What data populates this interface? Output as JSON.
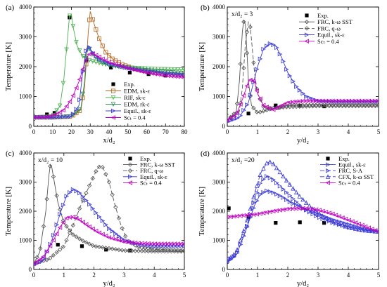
{
  "chart_data": [
    {
      "type": "line",
      "panel_label": "(a)",
      "annotation": "",
      "xlabel": "x/d₂",
      "ylabel": "Temperature [K]",
      "xlim": [
        0,
        80
      ],
      "ylim": [
        0,
        4000
      ],
      "xticks": [
        "0",
        "10",
        "20",
        "30",
        "40",
        "50",
        "60",
        "70",
        "80"
      ],
      "yticks": [
        "0",
        "1000",
        "2000",
        "3000",
        "4000"
      ],
      "legend_position": "bottom-right",
      "series": [
        {
          "name": "Exp.",
          "color": "#000000",
          "dash": "",
          "marker": "filled-square",
          "points_only": true,
          "x": [
            7,
            11,
            19,
            28,
            41,
            51,
            61,
            70
          ],
          "y": [
            400,
            450,
            3650,
            2200,
            1970,
            1800,
            1750,
            1700
          ]
        },
        {
          "name": "EDM, sk-ε",
          "color": "#b5651d",
          "dash": "",
          "marker": "open-square",
          "x": [
            0,
            10,
            20,
            25,
            27,
            29,
            30,
            31,
            33,
            35,
            38,
            42,
            48,
            55,
            62,
            70,
            80
          ],
          "y": [
            300,
            300,
            330,
            550,
            1300,
            3200,
            3850,
            3650,
            3250,
            2900,
            2500,
            2250,
            2050,
            1900,
            1820,
            1760,
            1700
          ]
        },
        {
          "name": "RIF, sk-ε",
          "color": "#4caf50",
          "dash": "",
          "marker": "triangle-down",
          "x": [
            0,
            10,
            14,
            16,
            18,
            19,
            20,
            21,
            23,
            26,
            30,
            36,
            45,
            55,
            65,
            80
          ],
          "y": [
            300,
            330,
            700,
            1600,
            3000,
            3700,
            3750,
            3300,
            2700,
            2350,
            2200,
            2100,
            2000,
            1950,
            1920,
            1900
          ]
        },
        {
          "name": "EDM, rk-ε",
          "color": "#2e8b57",
          "dash": "",
          "marker": "triangle-down",
          "x": [
            0,
            10,
            20,
            25,
            27,
            28,
            29,
            30,
            32,
            35,
            40,
            50,
            60,
            70,
            80
          ],
          "y": [
            300,
            300,
            330,
            600,
            1500,
            2400,
            2650,
            2550,
            2350,
            2200,
            2050,
            1950,
            1880,
            1820,
            1780
          ]
        },
        {
          "name": "Equil., sk-ε",
          "color": "#3b3bd6",
          "dash": "",
          "marker": "triangle-right",
          "x": [
            0,
            10,
            20,
            24,
            26,
            28,
            29,
            30,
            32,
            35,
            40,
            50,
            60,
            70,
            80
          ],
          "y": [
            300,
            300,
            330,
            700,
            1800,
            2600,
            2700,
            2600,
            2400,
            2250,
            2100,
            1950,
            1850,
            1780,
            1720
          ]
        },
        {
          "name": "Scₜ = 0.4",
          "color": "#c000c0",
          "dash": "",
          "marker": "triangle-left",
          "x": [
            0,
            8,
            12,
            16,
            20,
            24,
            27,
            29,
            31,
            34,
            40,
            50,
            60,
            70,
            80
          ],
          "y": [
            300,
            320,
            400,
            550,
            900,
            1500,
            2100,
            2400,
            2450,
            2350,
            2150,
            1950,
            1800,
            1700,
            1650
          ]
        }
      ]
    },
    {
      "type": "line",
      "panel_label": "(b)",
      "annotation": "x/d₂ = 3",
      "xlabel": "y/d₂",
      "ylabel": "Temperature [K]",
      "xlim": [
        0,
        5
      ],
      "ylim": [
        0,
        4000
      ],
      "xticks": [
        "0",
        "1",
        "2",
        "3",
        "4",
        "5"
      ],
      "yticks": [
        "0",
        "1000",
        "2000",
        "3000",
        "4000"
      ],
      "legend_position": "top-right",
      "series": [
        {
          "name": "Exp.",
          "color": "#000000",
          "dash": "",
          "marker": "filled-square",
          "points_only": true,
          "x": [
            0.7,
            1.6,
            2.4,
            3.2
          ],
          "y": [
            430,
            700,
            690,
            670
          ]
        },
        {
          "name": "FRC, k-ω SST",
          "color": "#555555",
          "dash": "",
          "marker": "open-diamond",
          "x": [
            0,
            0.3,
            0.4,
            0.5,
            0.55,
            0.6,
            0.65,
            0.7,
            0.8,
            1.0,
            1.5,
            2.0,
            3.0,
            4.0,
            5.0
          ],
          "y": [
            200,
            500,
            1500,
            3200,
            3550,
            3400,
            2500,
            1500,
            700,
            450,
            600,
            700,
            720,
            720,
            720
          ]
        },
        {
          "name": "FRC, q-ω",
          "color": "#555555",
          "dash": "6,3",
          "marker": "open-diamond",
          "x": [
            0,
            0.4,
            0.5,
            0.6,
            0.7,
            0.75,
            0.8,
            0.9,
            1.0,
            1.2,
            1.5,
            2.0,
            3.0,
            4.0,
            5.0
          ],
          "y": [
            200,
            500,
            1300,
            2800,
            3500,
            3450,
            2900,
            1800,
            1100,
            650,
            600,
            650,
            680,
            680,
            680
          ]
        },
        {
          "name": "Equil., sk-ε",
          "color": "#3b3bd6",
          "dash": "",
          "marker": "triangle-right",
          "x": [
            0,
            0.4,
            0.7,
            1.0,
            1.2,
            1.4,
            1.6,
            1.8,
            2.0,
            2.3,
            2.6,
            3.0,
            3.5,
            4.0,
            5.0
          ],
          "y": [
            150,
            300,
            800,
            2000,
            2600,
            2780,
            2700,
            2300,
            1800,
            1300,
            1000,
            850,
            830,
            830,
            830
          ]
        },
        {
          "name": "Scₜ = 0.4",
          "color": "#c000c0",
          "dash": "",
          "marker": "triangle-left",
          "x": [
            0,
            0.3,
            0.5,
            0.7,
            0.8,
            0.9,
            1.0,
            1.2,
            1.5,
            2.0,
            2.5,
            3.0,
            4.0,
            5.0
          ],
          "y": [
            200,
            400,
            900,
            1500,
            1580,
            1500,
            1100,
            700,
            550,
            800,
            850,
            850,
            850,
            850
          ]
        }
      ]
    },
    {
      "type": "line",
      "panel_label": "(c)",
      "annotation": "x/d₂ = 10",
      "xlabel": "y/d₂",
      "ylabel": "Temperature [K]",
      "xlim": [
        0,
        5
      ],
      "ylim": [
        0,
        4000
      ],
      "xticks": [
        "0",
        "1",
        "2",
        "3",
        "4",
        "5"
      ],
      "yticks": [
        "0",
        "1000",
        "2000",
        "3000",
        "4000"
      ],
      "legend_position": "top-right",
      "series": [
        {
          "name": "Exp.",
          "color": "#000000",
          "dash": "",
          "marker": "filled-square",
          "points_only": true,
          "x": [
            0.8,
            1.6,
            2.4,
            3.2
          ],
          "y": [
            850,
            800,
            680,
            650
          ]
        },
        {
          "name": "FRC, k-ω SST",
          "color": "#555555",
          "dash": "",
          "marker": "open-diamond",
          "x": [
            0,
            0.2,
            0.4,
            0.5,
            0.55,
            0.6,
            0.7,
            0.8,
            1.0,
            1.3,
            1.6,
            2.0,
            3.0,
            4.0,
            5.0
          ],
          "y": [
            200,
            600,
            2000,
            3200,
            3600,
            3500,
            2900,
            2300,
            1600,
            1200,
            1000,
            800,
            650,
            620,
            620
          ]
        },
        {
          "name": "FRC, q-ω",
          "color": "#555555",
          "dash": "6,3",
          "marker": "open-diamond",
          "x": [
            0,
            0.5,
            1.0,
            1.3,
            1.6,
            1.9,
            2.1,
            2.2,
            2.3,
            2.5,
            2.7,
            2.9,
            3.1,
            3.5,
            4.0,
            5.0
          ],
          "y": [
            200,
            350,
            800,
            1500,
            2300,
            3000,
            3450,
            3550,
            3500,
            3000,
            2200,
            1500,
            1000,
            750,
            700,
            650
          ]
        },
        {
          "name": "Equil., sk-ε",
          "color": "#3b3bd6",
          "dash": "",
          "marker": "triangle-right",
          "x": [
            0,
            0.3,
            0.6,
            0.9,
            1.1,
            1.3,
            1.5,
            1.8,
            2.1,
            2.5,
            3.0,
            3.5,
            4.0,
            4.5,
            5.0
          ],
          "y": [
            150,
            300,
            1000,
            2000,
            2550,
            2750,
            2650,
            2300,
            1900,
            1400,
            1000,
            850,
            800,
            800,
            800
          ]
        },
        {
          "name": "Scₜ = 0.4",
          "color": "#c000c0",
          "dash": "",
          "marker": "triangle-left",
          "x": [
            0,
            0.3,
            0.6,
            0.9,
            1.1,
            1.3,
            1.5,
            1.8,
            2.1,
            2.5,
            3.0,
            3.5,
            4.0,
            5.0
          ],
          "y": [
            200,
            400,
            900,
            1500,
            1780,
            1800,
            1720,
            1500,
            1300,
            1100,
            950,
            900,
            880,
            880
          ]
        }
      ]
    },
    {
      "type": "line",
      "panel_label": "(d)",
      "annotation": "x/d₂ =20",
      "xlabel": "y/d₂",
      "ylabel": "Temperature [K]",
      "xlim": [
        0,
        5
      ],
      "ylim": [
        0,
        4000
      ],
      "xticks": [
        "0",
        "1",
        "2",
        "3",
        "4",
        "5"
      ],
      "yticks": [
        "0",
        "1000",
        "2000",
        "3000",
        "4000"
      ],
      "legend_position": "top-right",
      "series": [
        {
          "name": "Exp.",
          "color": "#000000",
          "dash": "",
          "marker": "filled-square",
          "points_only": true,
          "x": [
            0.05,
            0.7,
            1.6,
            2.4,
            3.2
          ],
          "y": [
            2100,
            1800,
            1600,
            1620,
            1600
          ]
        },
        {
          "name": "Equil., sk-ε",
          "color": "#3b3bd6",
          "dash": "",
          "marker": "triangle-right",
          "x": [
            0,
            0.3,
            0.6,
            0.9,
            1.1,
            1.3,
            1.5,
            1.8,
            2.1,
            2.5,
            3.0,
            3.5,
            4.0,
            4.5,
            5.0
          ],
          "y": [
            250,
            500,
            1300,
            2200,
            2600,
            2700,
            2650,
            2500,
            2300,
            2100,
            1900,
            1700,
            1550,
            1400,
            1300
          ]
        },
        {
          "name": "FRC, S-A",
          "color": "#3b3bd6",
          "dash": "6,3",
          "marker": "triangle-right",
          "x": [
            0,
            0.3,
            0.6,
            0.9,
            1.1,
            1.3,
            1.5,
            1.8,
            2.1,
            2.5,
            3.0,
            3.5,
            4.0,
            4.5,
            5.0
          ],
          "y": [
            300,
            500,
            1300,
            2400,
            3000,
            3200,
            3100,
            2800,
            2500,
            2100,
            1800,
            1600,
            1450,
            1350,
            1300
          ]
        },
        {
          "name": "CFX, k-ω SST",
          "color": "#3b3bd6",
          "dash": "6,3",
          "marker": "triangle-up",
          "x": [
            0,
            0.3,
            0.6,
            0.9,
            1.1,
            1.3,
            1.4,
            1.5,
            1.7,
            2.0,
            2.4,
            2.8,
            3.2,
            3.6,
            4.0,
            4.5,
            5.0
          ],
          "y": [
            300,
            600,
            1500,
            2600,
            3300,
            3650,
            3700,
            3650,
            3400,
            3000,
            2500,
            2100,
            1800,
            1600,
            1450,
            1350,
            1300
          ]
        },
        {
          "name": "Scₜ = 0.4",
          "color": "#c000c0",
          "dash": "",
          "marker": "triangle-left",
          "x": [
            0,
            0.5,
            1.0,
            1.5,
            2.0,
            2.5,
            3.0,
            3.5,
            4.0,
            4.5,
            5.0
          ],
          "y": [
            1800,
            1850,
            1900,
            2000,
            2080,
            2100,
            2050,
            1900,
            1700,
            1500,
            1300
          ]
        }
      ]
    }
  ]
}
